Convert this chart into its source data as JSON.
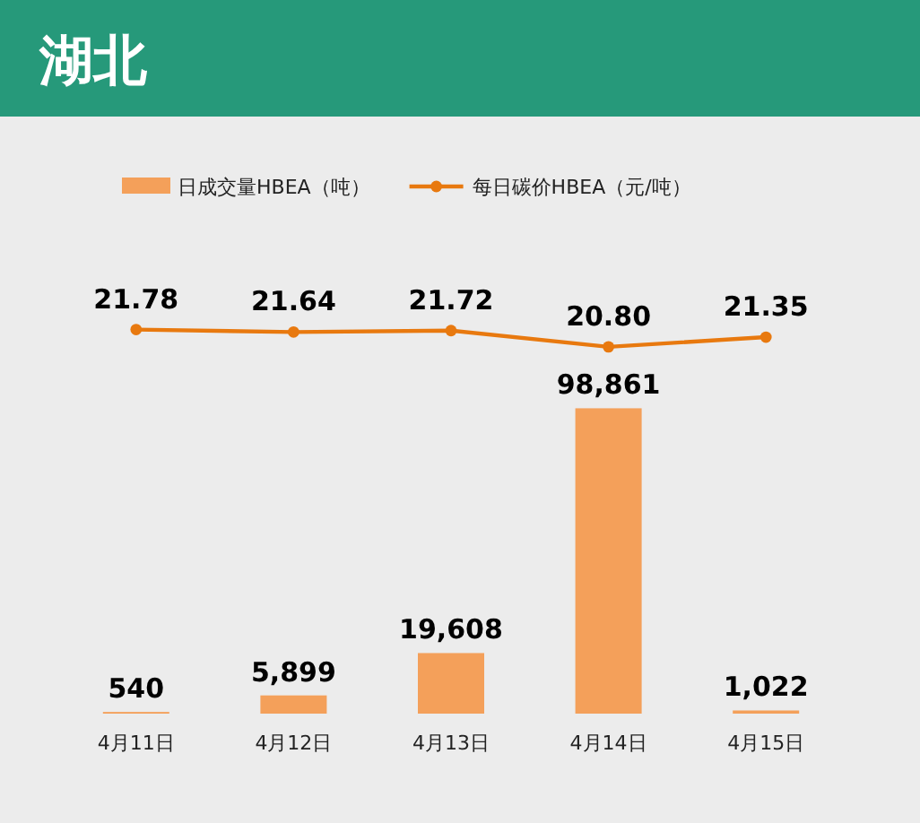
{
  "chart_data": {
    "type": "bar",
    "title": "湖北",
    "categories": [
      "4月11日",
      "4月12日",
      "4月13日",
      "4月14日",
      "4月15日"
    ],
    "series": [
      {
        "name": "日成交量HBEA（吨）",
        "color": "#f4a05a",
        "values": [
          540,
          5899,
          19608,
          98861,
          1022
        ],
        "value_labels": [
          "540",
          "5,899",
          "19,608",
          "98,861",
          "1,022"
        ]
      },
      {
        "name": "每日碳价HBEA（元/吨）",
        "type": "line",
        "axis": "y2",
        "color": "#e8790f",
        "values": [
          21.78,
          21.64,
          21.72,
          20.8,
          21.35
        ],
        "value_labels": [
          "21.78",
          "21.64",
          "21.72",
          "20.80",
          "21.35"
        ]
      }
    ],
    "ylim": [
      0,
      173000
    ],
    "y2lim": [
      0,
      30.3
    ],
    "tick_labels": false,
    "legend": "top",
    "marker": "circle"
  }
}
